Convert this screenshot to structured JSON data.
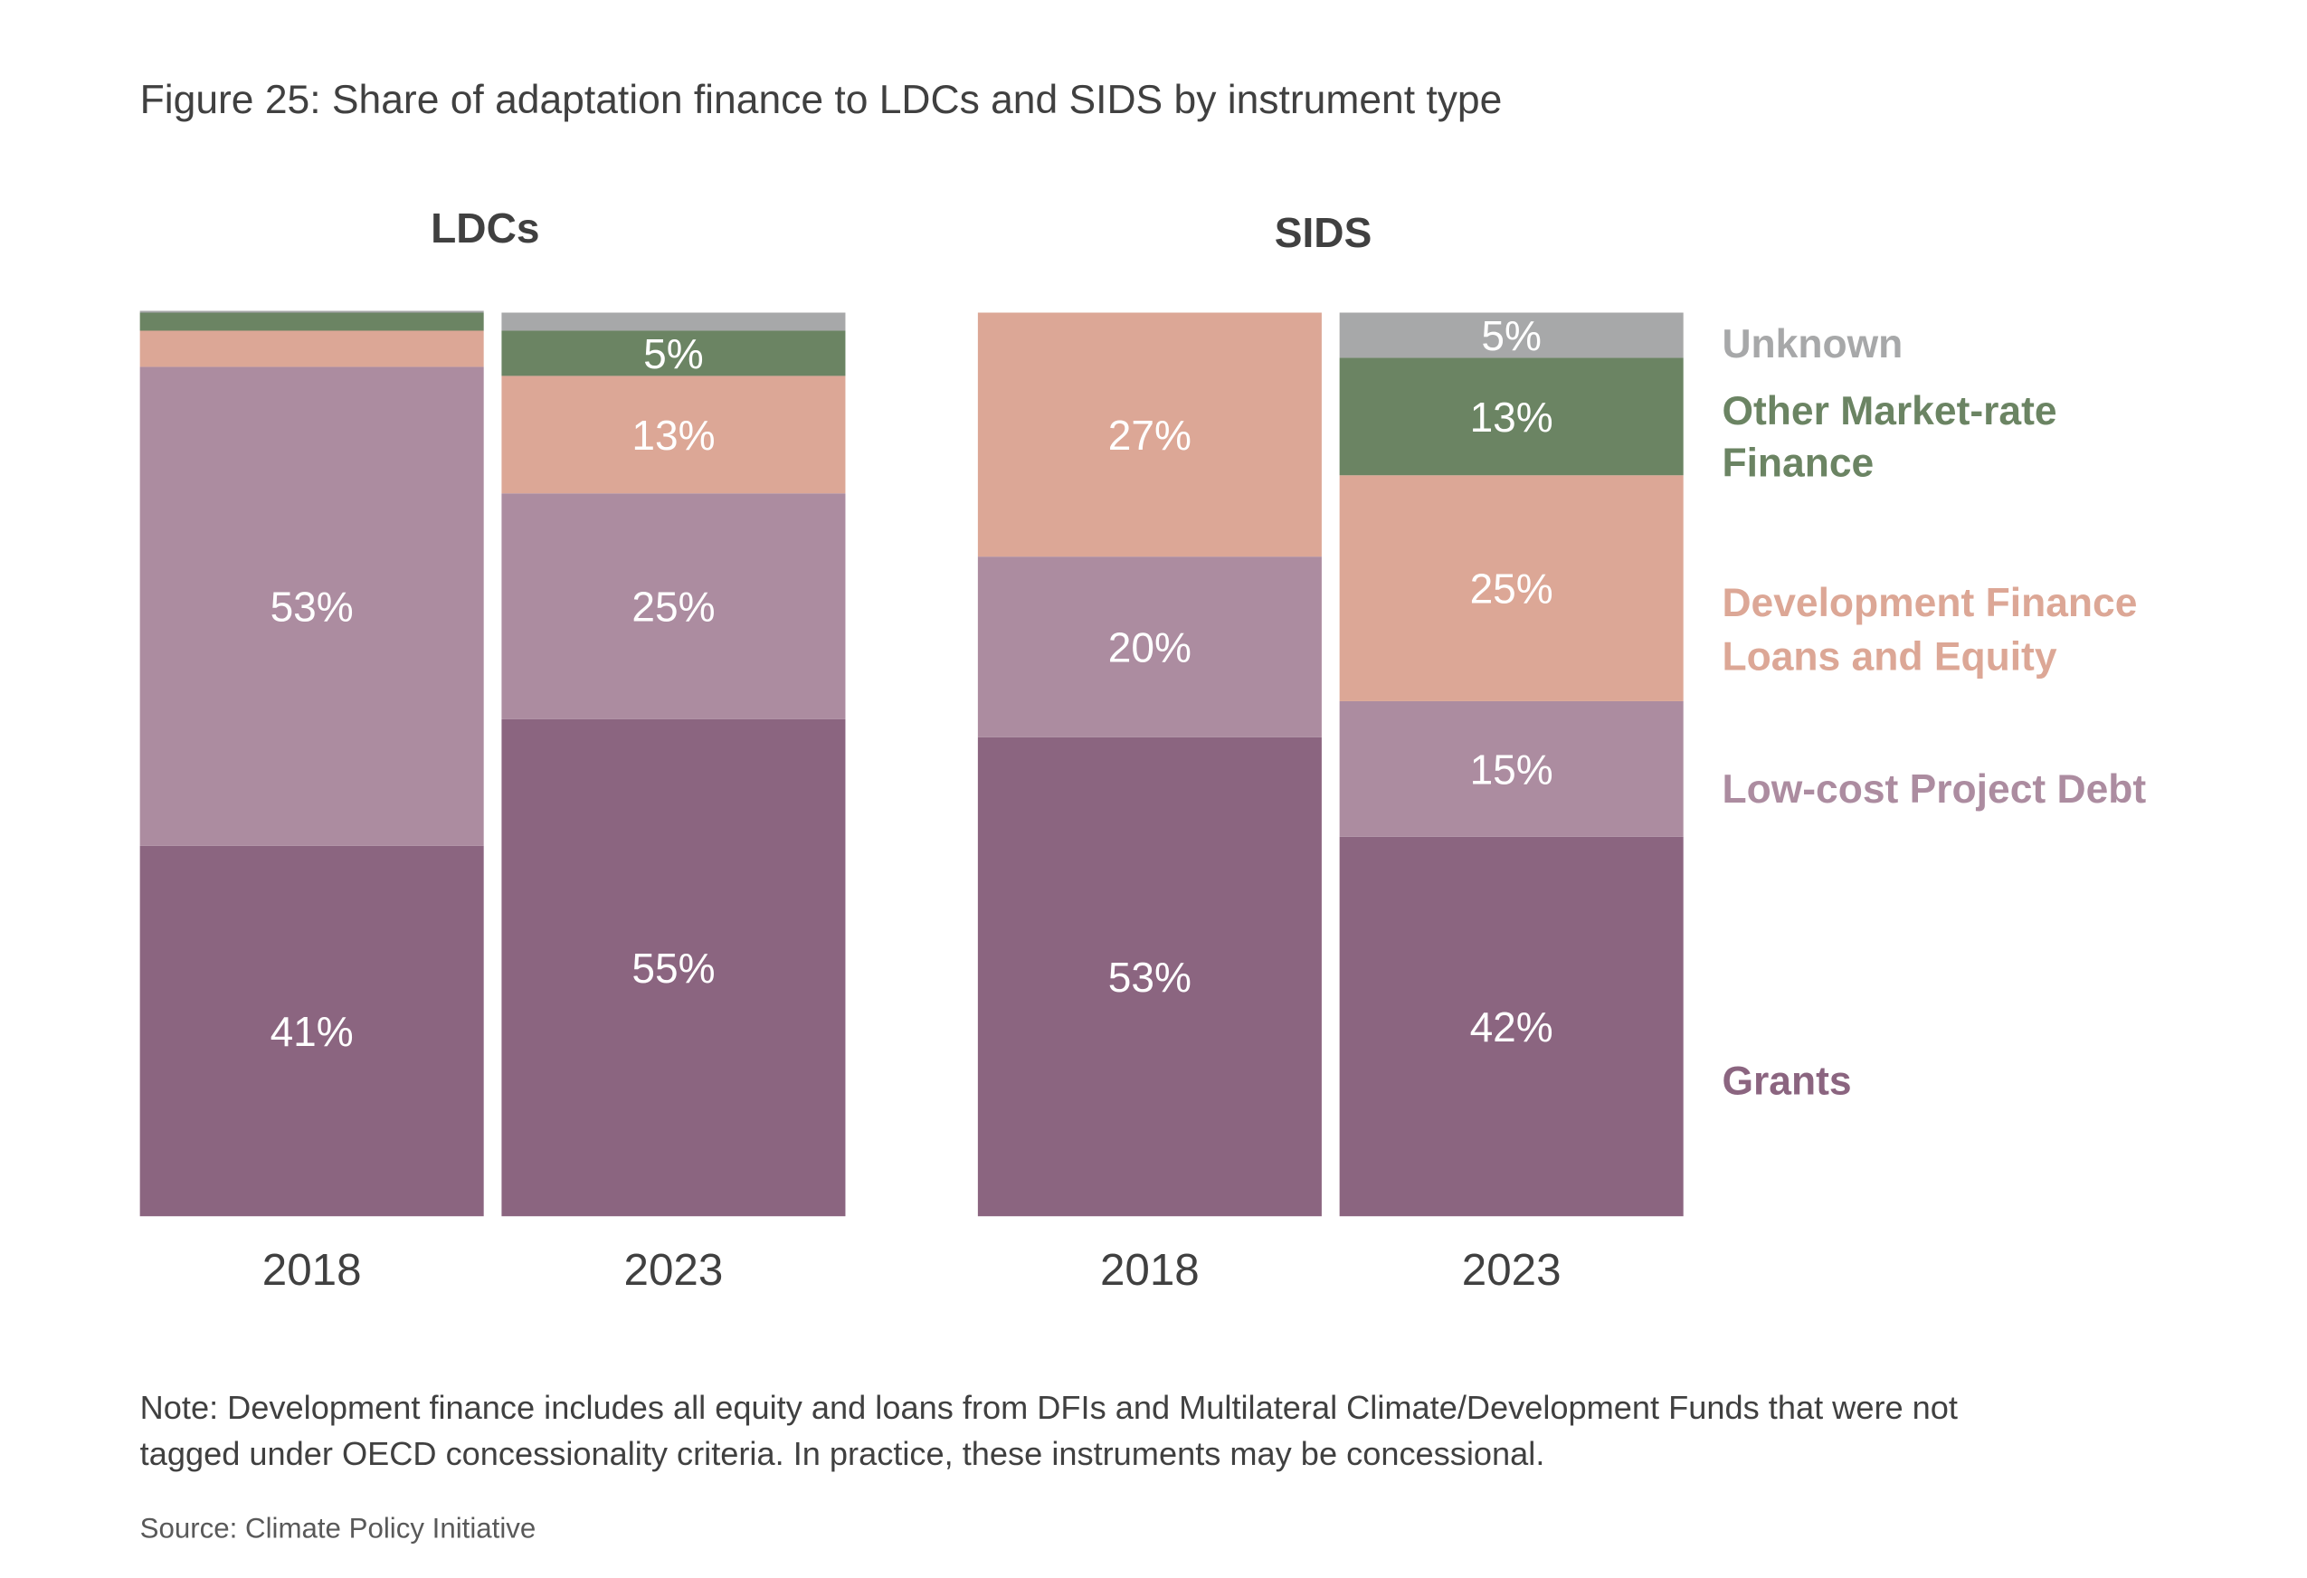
{
  "chart_data": {
    "type": "bar",
    "stacked": true,
    "title": "Figure 25: Share of adaptation finance to LDCs and SIDS by instrument type",
    "xlabel": "",
    "ylabel": "",
    "ylim": [
      0,
      100
    ],
    "unit": "%",
    "grid": false,
    "legend_position": "right",
    "groups": [
      {
        "name": "LDCs",
        "categories": [
          "2018",
          "2023"
        ]
      },
      {
        "name": "SIDS",
        "categories": [
          "2018",
          "2023"
        ]
      }
    ],
    "series": [
      {
        "name": "Grants",
        "color": "#8b6580",
        "values": {
          "LDCs": [
            41,
            55
          ],
          "SIDS": [
            53,
            42
          ]
        },
        "labels": {
          "LDCs": [
            "41%",
            "55%"
          ],
          "SIDS": [
            "53%",
            "42%"
          ]
        }
      },
      {
        "name": "Low-cost Project Debt",
        "color": "#ac8ca0",
        "values": {
          "LDCs": [
            53,
            25
          ],
          "SIDS": [
            20,
            15
          ]
        },
        "labels": {
          "LDCs": [
            "53%",
            "25%"
          ],
          "SIDS": [
            "20%",
            "15%"
          ]
        }
      },
      {
        "name": "Development Finance Loans and Equity",
        "legend_lines": [
          "Development Finance",
          "Loans and Equity"
        ],
        "color": "#dca796",
        "values": {
          "LDCs": [
            4,
            13
          ],
          "SIDS": [
            27,
            25
          ]
        },
        "labels": {
          "LDCs": [
            "",
            "13%"
          ],
          "SIDS": [
            "27%",
            "25%"
          ]
        }
      },
      {
        "name": "Other Market-rate Finance",
        "legend_lines": [
          "Other Market-rate",
          "Finance"
        ],
        "color": "#6b8463",
        "values": {
          "LDCs": [
            2,
            5
          ],
          "SIDS": [
            0,
            13
          ]
        },
        "labels": {
          "LDCs": [
            "",
            "5%"
          ],
          "SIDS": [
            "",
            "13%"
          ]
        }
      },
      {
        "name": "Unknown",
        "color": "#a7a8a9",
        "values": {
          "LDCs": [
            0.2,
            2
          ],
          "SIDS": [
            0,
            5
          ]
        },
        "labels": {
          "LDCs": [
            "",
            ""
          ],
          "SIDS": [
            "",
            "5%"
          ]
        }
      }
    ]
  },
  "notes": {
    "note_line1": "Note: Development finance includes all equity and loans from DFIs and Multilateral Climate/Development Funds that were not",
    "note_line2": "tagged under OECD concessionality criteria. In practice, these instruments may be concessional.",
    "source": "Source: Climate Policy Initiative"
  }
}
